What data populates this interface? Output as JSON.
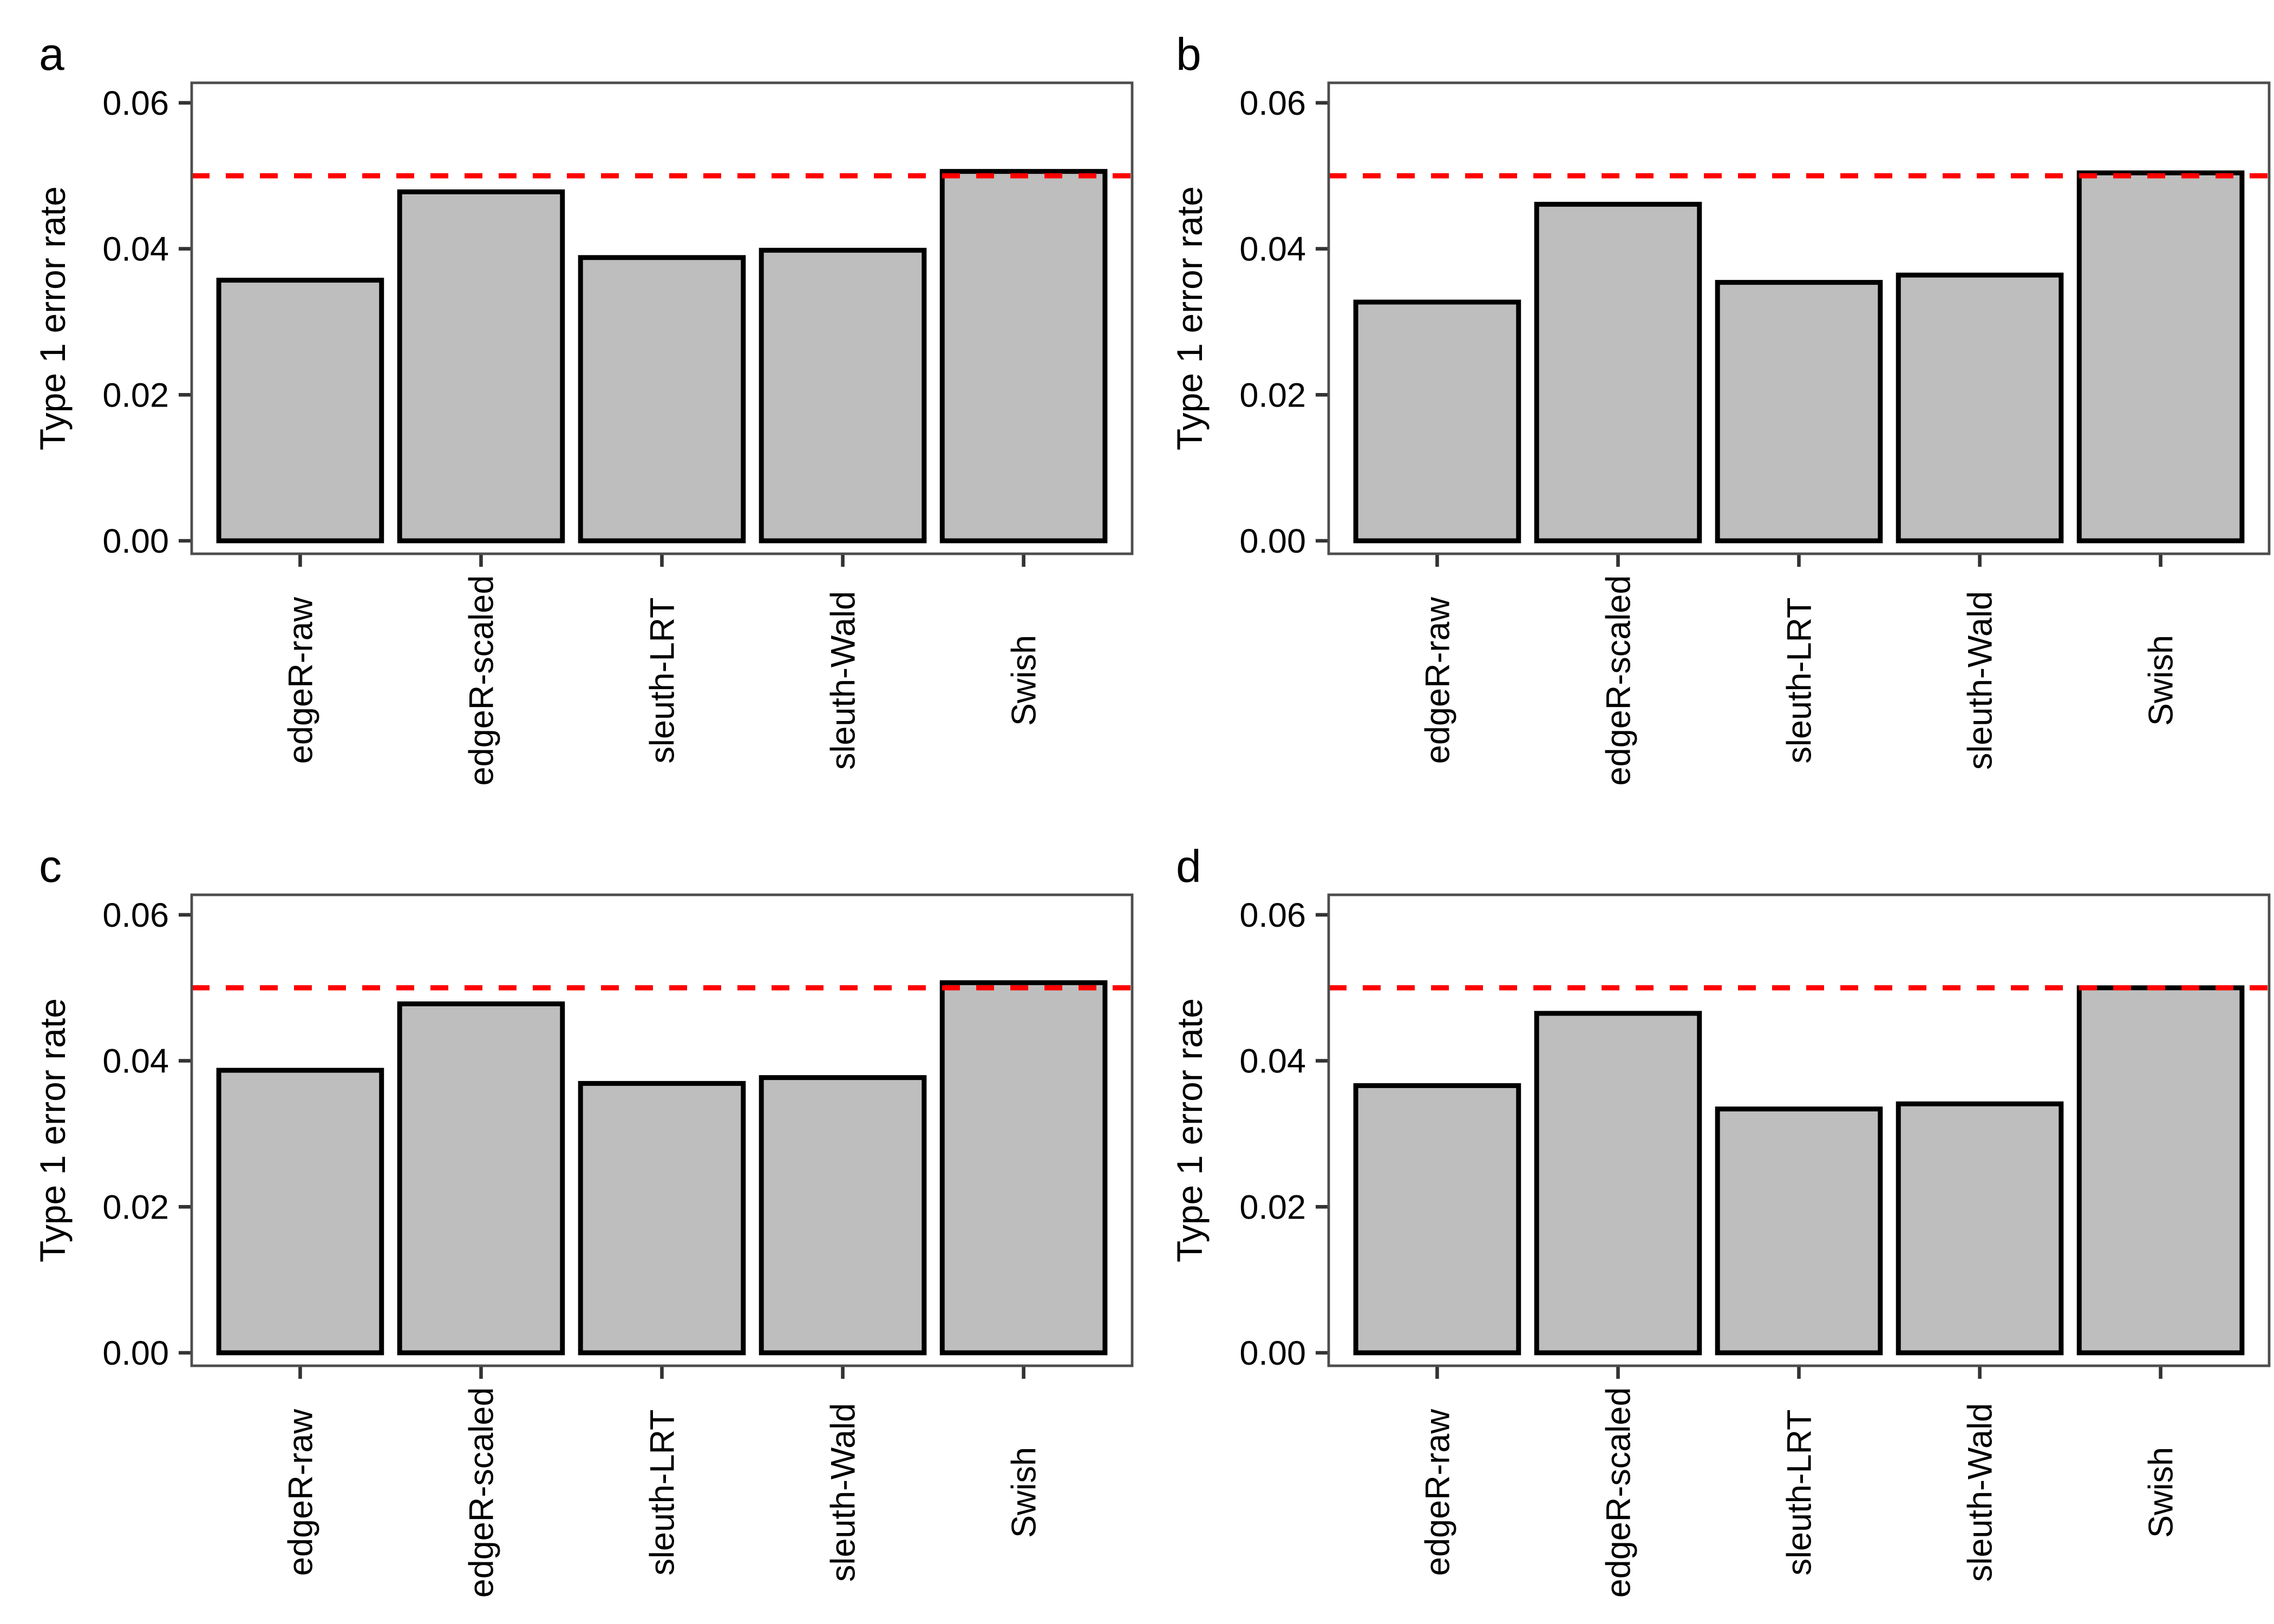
{
  "figure": {
    "background": "#FFFFFF",
    "n_panels": 4,
    "layout": "2x2 grid of bar charts",
    "colors": {
      "bar_fill": "#BEBEBE",
      "bar_stroke": "#000000",
      "threshold_line": "#FF0000",
      "panel_border": "#4D4D4D",
      "axis_tick": "#333333",
      "text": "#000000"
    }
  },
  "chart_data": [
    {
      "type": "bar",
      "panel_label": "a",
      "categories": [
        "edgeR-raw",
        "edgeR-scaled",
        "sleuth-LRT",
        "sleuth-Wald",
        "Swish"
      ],
      "values": [
        0.0357,
        0.0478,
        0.0388,
        0.0398,
        0.0506
      ],
      "title": "",
      "xlabel": "",
      "ylabel": "Type 1 error rate",
      "ylim": [
        0,
        0.06
      ],
      "yticks": [
        0,
        0.02,
        0.04,
        0.06
      ],
      "ytick_labels": [
        "0.00",
        "0.02",
        "0.04",
        "0.06"
      ],
      "x_tick_label_rotation_deg": 90,
      "threshold_line": {
        "value": 0.05,
        "color": "#FF0000",
        "style": "dashed"
      },
      "grid": false,
      "legend": "none"
    },
    {
      "type": "bar",
      "panel_label": "b",
      "categories": [
        "edgeR-raw",
        "edgeR-scaled",
        "sleuth-LRT",
        "sleuth-Wald",
        "Swish"
      ],
      "values": [
        0.0327,
        0.0461,
        0.0354,
        0.0364,
        0.0504
      ],
      "title": "",
      "xlabel": "",
      "ylabel": "Type 1 error rate",
      "ylim": [
        0,
        0.06
      ],
      "yticks": [
        0,
        0.02,
        0.04,
        0.06
      ],
      "ytick_labels": [
        "0.00",
        "0.02",
        "0.04",
        "0.06"
      ],
      "x_tick_label_rotation_deg": 90,
      "threshold_line": {
        "value": 0.05,
        "color": "#FF0000",
        "style": "dashed"
      },
      "grid": false,
      "legend": "none"
    },
    {
      "type": "bar",
      "panel_label": "c",
      "categories": [
        "edgeR-raw",
        "edgeR-scaled",
        "sleuth-LRT",
        "sleuth-Wald",
        "Swish"
      ],
      "values": [
        0.0387,
        0.0478,
        0.0369,
        0.0377,
        0.0507
      ],
      "title": "",
      "xlabel": "",
      "ylabel": "Type 1 error rate",
      "ylim": [
        0,
        0.06
      ],
      "yticks": [
        0,
        0.02,
        0.04,
        0.06
      ],
      "ytick_labels": [
        "0.00",
        "0.02",
        "0.04",
        "0.06"
      ],
      "x_tick_label_rotation_deg": 90,
      "threshold_line": {
        "value": 0.05,
        "color": "#FF0000",
        "style": "dashed"
      },
      "grid": false,
      "legend": "none"
    },
    {
      "type": "bar",
      "panel_label": "d",
      "categories": [
        "edgeR-raw",
        "edgeR-scaled",
        "sleuth-LRT",
        "sleuth-Wald",
        "Swish"
      ],
      "values": [
        0.0366,
        0.0465,
        0.0334,
        0.0341,
        0.05
      ],
      "title": "",
      "xlabel": "",
      "ylabel": "Type 1 error rate",
      "ylim": [
        0,
        0.06
      ],
      "yticks": [
        0,
        0.02,
        0.04,
        0.06
      ],
      "ytick_labels": [
        "0.00",
        "0.02",
        "0.04",
        "0.06"
      ],
      "x_tick_label_rotation_deg": 90,
      "threshold_line": {
        "value": 0.05,
        "color": "#FF0000",
        "style": "dashed"
      },
      "grid": false,
      "legend": "none"
    }
  ]
}
